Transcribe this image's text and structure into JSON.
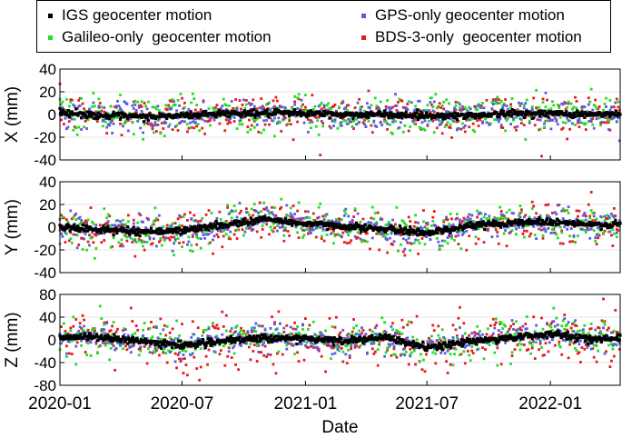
{
  "legend": [
    {
      "label": "IGS geocenter motion",
      "color": "#000000"
    },
    {
      "label": "GPS-only geocenter motion",
      "color": "#5a5ae6"
    },
    {
      "label": "Galileo-only  geocenter motion",
      "color": "#22dd22"
    },
    {
      "label": "BDS-3-only  geocenter motion",
      "color": "#e51c1c"
    }
  ],
  "chart_data": {
    "type": "scatter",
    "xlabel": "Date",
    "x_range": [
      "2020-01-01",
      "2022-04-15"
    ],
    "x_ticks": [
      "2020-01",
      "2020-07",
      "2021-01",
      "2021-07",
      "2022-01"
    ],
    "grid": "horizontal",
    "legend_position": "top",
    "series_names": [
      "IGS geocenter motion",
      "GPS-only geocenter motion",
      "Galileo-only  geocenter motion",
      "BDS-3-only  geocenter motion"
    ],
    "panels": [
      {
        "ylabel": "X (mm)",
        "ylim": [
          -40,
          40
        ],
        "yticks": [
          -40,
          -20,
          0,
          20,
          40
        ],
        "anchor_dates": [
          "2020-01-01",
          "2020-03-01",
          "2020-05-01",
          "2020-07-01",
          "2020-09-01",
          "2020-11-01",
          "2021-01-01",
          "2021-03-01",
          "2021-05-01",
          "2021-07-01",
          "2021-09-01",
          "2021-11-01",
          "2022-01-01",
          "2022-03-01",
          "2022-04-15"
        ],
        "igs_mean": [
          2,
          -1,
          -2,
          -1,
          1,
          1,
          1,
          0,
          0,
          -1,
          -1,
          1,
          1,
          0,
          0
        ],
        "spread": {
          "gps": 6,
          "galileo": 8,
          "bds3": 9
        }
      },
      {
        "ylabel": "Y (mm)",
        "ylim": [
          -40,
          40
        ],
        "yticks": [
          -40,
          -20,
          0,
          20,
          40
        ],
        "anchor_dates": [
          "2020-01-01",
          "2020-03-01",
          "2020-05-01",
          "2020-07-01",
          "2020-09-01",
          "2020-11-01",
          "2021-01-01",
          "2021-03-01",
          "2021-05-01",
          "2021-07-01",
          "2021-09-01",
          "2021-11-01",
          "2022-01-01",
          "2022-03-01",
          "2022-04-15"
        ],
        "igs_mean": [
          0,
          -2,
          -4,
          -3,
          2,
          7,
          3,
          1,
          -2,
          -5,
          1,
          4,
          5,
          2,
          2
        ],
        "spread": {
          "gps": 6,
          "galileo": 8,
          "bds3": 9
        }
      },
      {
        "ylabel": "Z (mm)",
        "ylim": [
          -80,
          80
        ],
        "yticks": [
          -80,
          -40,
          0,
          40,
          80
        ],
        "anchor_dates": [
          "2020-01-01",
          "2020-03-01",
          "2020-05-01",
          "2020-07-01",
          "2020-09-01",
          "2020-11-01",
          "2021-01-01",
          "2021-03-01",
          "2021-05-01",
          "2021-07-01",
          "2021-09-01",
          "2021-11-01",
          "2022-01-01",
          "2022-03-01",
          "2022-04-15"
        ],
        "igs_mean": [
          5,
          5,
          -3,
          -9,
          -3,
          4,
          2,
          -2,
          4,
          -14,
          -3,
          3,
          11,
          2,
          2
        ],
        "spread": {
          "gps": 12,
          "galileo": 15,
          "bds3": 24
        }
      }
    ]
  }
}
